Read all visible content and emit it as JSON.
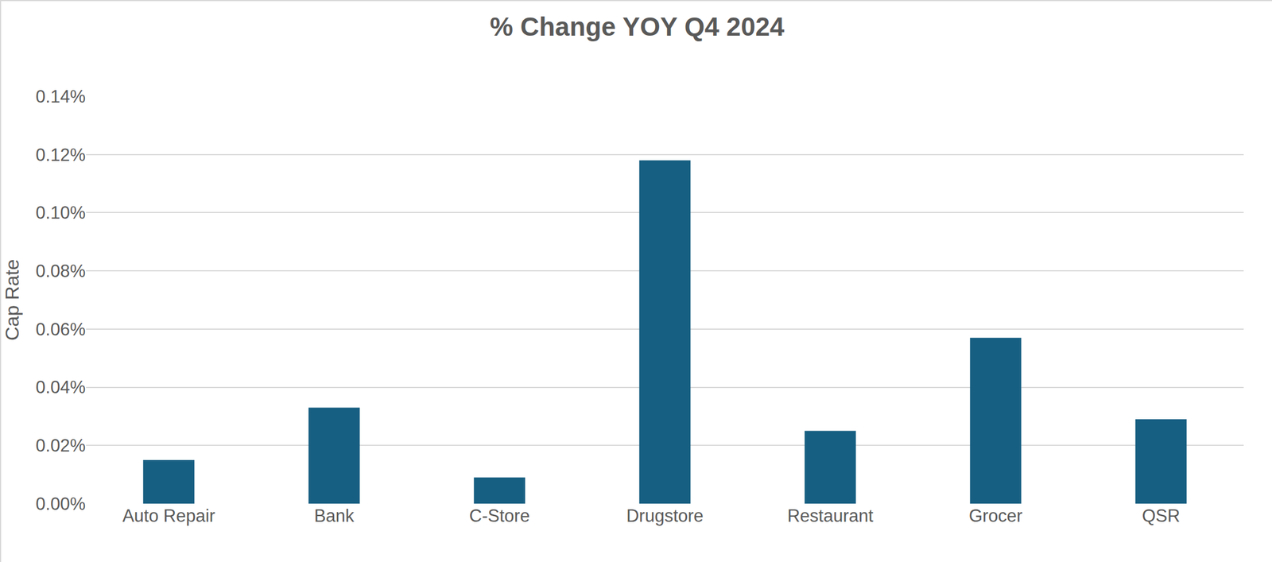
{
  "chart_data": {
    "type": "bar",
    "title": "% Change YOY Q4 2024",
    "y_label": "Cap Rate",
    "categories": [
      "Auto Repair",
      "Bank",
      "C-Store",
      "Drugstore",
      "Restaurant",
      "Grocer",
      "QSR"
    ],
    "values": [
      0.015,
      0.033,
      0.009,
      0.118,
      0.025,
      0.057,
      0.029
    ],
    "color": "#175f82",
    "ylim": [
      0,
      0.14
    ],
    "yticks": [
      {
        "value": 0,
        "label": "0.00%"
      },
      {
        "value": 0.02,
        "label": "0.02%"
      },
      {
        "value": 0.04,
        "label": "0.04%"
      },
      {
        "value": 0.06,
        "label": "0.06%"
      },
      {
        "value": 0.08,
        "label": "0.08%"
      },
      {
        "value": 0.1,
        "label": "0.10%"
      },
      {
        "value": 0.12,
        "label": "0.12%"
      },
      {
        "value": 0.14,
        "label": "0.14%"
      }
    ],
    "grid": true
  }
}
